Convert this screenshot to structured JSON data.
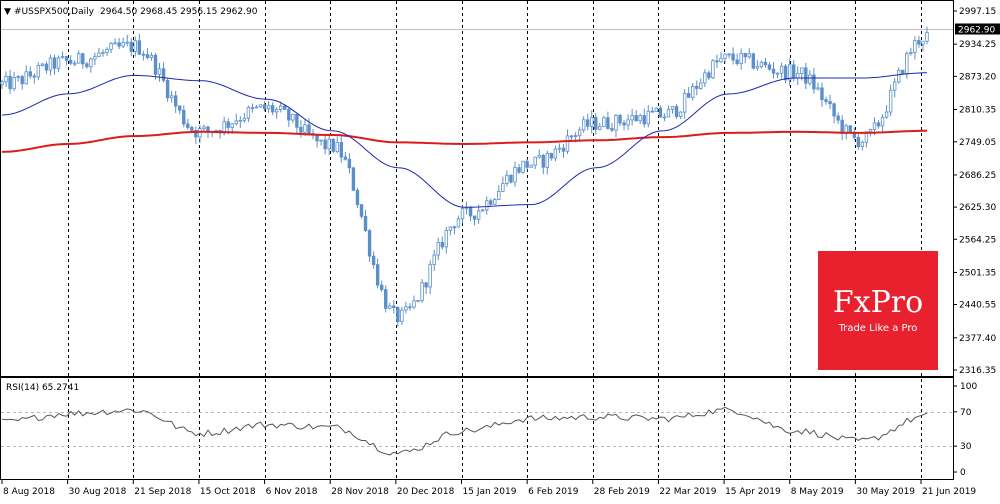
{
  "header": {
    "symbol_text": "#USSPX500,Daily",
    "ohlc_text": "2964.50 2968.45 2956.15 2962.90"
  },
  "price_axis": {
    "ticks": [
      "2997.15",
      "2934.25",
      "2873.20",
      "2810.35",
      "2749.05",
      "2686.25",
      "2625.30",
      "2564.25",
      "2501.35",
      "2440.55",
      "2377.40",
      "2316.35"
    ],
    "tick_values": [
      2997.15,
      2934.25,
      2873.2,
      2810.35,
      2749.05,
      2686.25,
      2625.3,
      2564.25,
      2501.35,
      2440.55,
      2377.4,
      2316.35
    ],
    "current_price_label": "2962.90"
  },
  "rsi": {
    "label": "RSI(14) 65.2741",
    "ticks": [
      "100",
      "70",
      "30",
      "0"
    ],
    "tick_values": [
      100,
      70,
      30,
      0
    ]
  },
  "date_axis": {
    "labels": [
      "8 Aug 2018",
      "30 Aug 2018",
      "21 Sep 2018",
      "15 Oct 2018",
      "6 Nov 2018",
      "28 Nov 2018",
      "20 Dec 2018",
      "15 Jan 2019",
      "6 Feb 2019",
      "28 Feb 2019",
      "22 Mar 2019",
      "15 Apr 2019",
      "8 May 2019",
      "30 May 2019",
      "21 Jun 2019"
    ]
  },
  "logo": {
    "brand": "FxPro",
    "tagline": "Trade Like a Pro",
    "color": "#e9212e"
  },
  "colors": {
    "candle": "#5b8fc9",
    "ma_fast": "#1f28b0",
    "ma_slow": "#dd1b1b",
    "rsi_line": "#555555",
    "background": "#ffffff"
  },
  "chart_data": {
    "type": "line",
    "title": "#USSPX500,Daily",
    "x": [
      "8 Aug 2018",
      "30 Aug 2018",
      "21 Sep 2018",
      "15 Oct 2018",
      "6 Nov 2018",
      "28 Nov 2018",
      "20 Dec 2018",
      "15 Jan 2019",
      "6 Feb 2019",
      "28 Feb 2019",
      "22 Mar 2019",
      "15 Apr 2019",
      "8 May 2019",
      "30 May 2019",
      "21 Jun 2019"
    ],
    "ylim": [
      2316.35,
      2997.15
    ],
    "series": [
      {
        "values": [
          2858,
          2901,
          2930,
          2768,
          2812,
          2740,
          2416,
          2610,
          2707,
          2784,
          2800,
          2907,
          2880,
          2752,
          2950
        ]
      },
      {
        "values": [
          2800,
          2840,
          2875,
          2865,
          2830,
          2770,
          2700,
          2625,
          2630,
          2700,
          2770,
          2840,
          2870,
          2870,
          2880
        ]
      },
      {
        "values": [
          2730,
          2745,
          2760,
          2768,
          2766,
          2762,
          2748,
          2745,
          2748,
          2752,
          2758,
          2766,
          2768,
          2766,
          2770
        ]
      }
    ],
    "rsi_values": [
      58,
      68,
      72,
      45,
      55,
      52,
      22,
      48,
      62,
      64,
      62,
      72,
      48,
      36,
      65
    ],
    "rsi_ylim": [
      0,
      100
    ],
    "rsi_levels": [
      70,
      30
    ]
  }
}
